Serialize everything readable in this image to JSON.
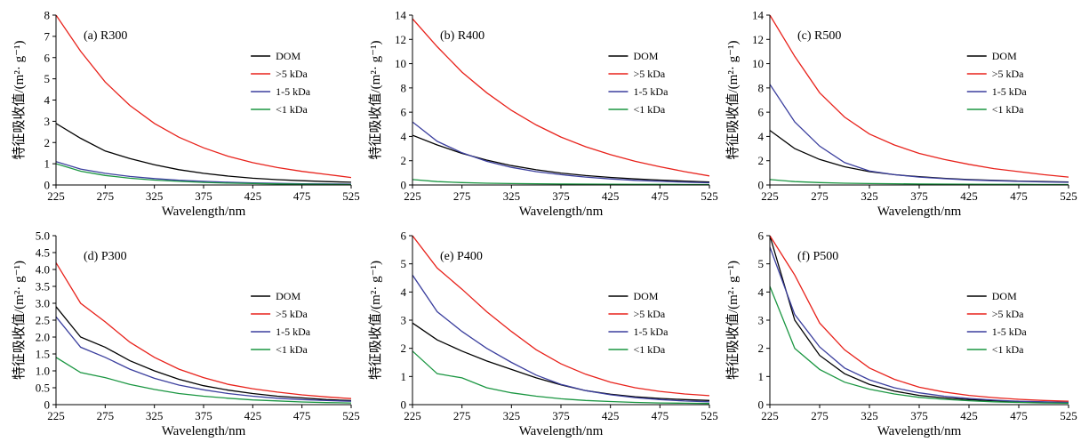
{
  "chart_data": [
    {
      "type": "line",
      "title": "(a) R300",
      "xlabel": "Wavelength/nm",
      "ylabel": "特征吸收值/(m²· g⁻¹)",
      "xlim": [
        225,
        525
      ],
      "ylim": [
        0,
        8
      ],
      "xticks": [
        "225",
        "275",
        "325",
        "375",
        "425",
        "475",
        "525"
      ],
      "yticks": [
        "0",
        "1",
        "2",
        "3",
        "4",
        "5",
        "6",
        "7",
        "8"
      ],
      "legend_position": "right",
      "x": [
        225,
        250,
        275,
        300,
        325,
        350,
        375,
        400,
        425,
        450,
        475,
        500,
        525
      ],
      "series": [
        {
          "name": "DOM",
          "color": "#000000",
          "values": [
            2.9,
            2.2,
            1.6,
            1.25,
            0.95,
            0.72,
            0.55,
            0.42,
            0.32,
            0.25,
            0.2,
            0.16,
            0.13
          ]
        },
        {
          "name": ">5 kDa",
          "color": "#e8221b",
          "values": [
            8.0,
            6.3,
            4.85,
            3.75,
            2.9,
            2.25,
            1.75,
            1.35,
            1.05,
            0.82,
            0.64,
            0.5,
            0.35
          ]
        },
        {
          "name": "1-5 kDa",
          "color": "#3b3f9e",
          "values": [
            1.1,
            0.75,
            0.55,
            0.4,
            0.3,
            0.22,
            0.17,
            0.13,
            0.1,
            0.08,
            0.06,
            0.05,
            0.04
          ]
        },
        {
          "name": "<1 kDa",
          "color": "#1a9641",
          "values": [
            1.0,
            0.65,
            0.45,
            0.32,
            0.23,
            0.17,
            0.12,
            0.09,
            0.07,
            0.05,
            0.04,
            0.03,
            0.02
          ]
        }
      ]
    },
    {
      "type": "line",
      "title": "(b) R400",
      "xlabel": "Wavelength/nm",
      "ylabel": "特征吸收值/(m²· g⁻¹)",
      "xlim": [
        225,
        525
      ],
      "ylim": [
        0,
        14
      ],
      "xticks": [
        "225",
        "275",
        "325",
        "375",
        "425",
        "475",
        "525"
      ],
      "yticks": [
        "0",
        "2",
        "4",
        "6",
        "8",
        "10",
        "12",
        "14"
      ],
      "legend_position": "right",
      "x": [
        225,
        250,
        275,
        300,
        325,
        350,
        375,
        400,
        425,
        450,
        475,
        500,
        525
      ],
      "series": [
        {
          "name": "DOM",
          "color": "#000000",
          "values": [
            4.1,
            3.3,
            2.6,
            2.05,
            1.6,
            1.25,
            0.98,
            0.78,
            0.62,
            0.5,
            0.4,
            0.32,
            0.25
          ]
        },
        {
          "name": ">5 kDa",
          "color": "#e8221b",
          "values": [
            13.7,
            11.4,
            9.3,
            7.6,
            6.15,
            4.95,
            3.95,
            3.15,
            2.5,
            1.95,
            1.5,
            1.1,
            0.75
          ]
        },
        {
          "name": "1-5 kDa",
          "color": "#3b3f9e",
          "values": [
            5.2,
            3.6,
            2.65,
            1.95,
            1.45,
            1.1,
            0.85,
            0.65,
            0.5,
            0.38,
            0.3,
            0.23,
            0.18
          ]
        },
        {
          "name": "<1 kDa",
          "color": "#1a9641",
          "values": [
            0.45,
            0.28,
            0.2,
            0.15,
            0.12,
            0.1,
            0.08,
            0.07,
            0.06,
            0.05,
            0.05,
            0.04,
            0.04
          ]
        }
      ]
    },
    {
      "type": "line",
      "title": "(c) R500",
      "xlabel": "Wavelength/nm",
      "ylabel": "特征吸收值/(m²· g⁻¹)",
      "xlim": [
        225,
        525
      ],
      "ylim": [
        0,
        14
      ],
      "xticks": [
        "225",
        "275",
        "325",
        "375",
        "425",
        "475",
        "525"
      ],
      "yticks": [
        "0",
        "2",
        "4",
        "6",
        "8",
        "10",
        "12",
        "14"
      ],
      "legend_position": "right",
      "x": [
        225,
        250,
        275,
        300,
        325,
        350,
        375,
        400,
        425,
        450,
        475,
        500,
        525
      ],
      "series": [
        {
          "name": "DOM",
          "color": "#000000",
          "values": [
            4.5,
            3.0,
            2.1,
            1.5,
            1.1,
            0.85,
            0.68,
            0.55,
            0.45,
            0.38,
            0.32,
            0.28,
            0.25
          ]
        },
        {
          "name": ">5 kDa",
          "color": "#e8221b",
          "values": [
            14.0,
            10.6,
            7.6,
            5.6,
            4.2,
            3.3,
            2.6,
            2.1,
            1.7,
            1.35,
            1.1,
            0.85,
            0.65
          ]
        },
        {
          "name": "1-5 kDa",
          "color": "#3b3f9e",
          "values": [
            8.3,
            5.2,
            3.2,
            1.85,
            1.15,
            0.85,
            0.65,
            0.52,
            0.42,
            0.35,
            0.3,
            0.25,
            0.22
          ]
        },
        {
          "name": "<1 kDa",
          "color": "#1a9641",
          "values": [
            0.45,
            0.28,
            0.2,
            0.15,
            0.12,
            0.1,
            0.08,
            0.07,
            0.06,
            0.05,
            0.05,
            0.04,
            0.04
          ]
        }
      ]
    },
    {
      "type": "line",
      "title": "(d) P300",
      "xlabel": "Wavelength/nm",
      "ylabel": "特征吸收值/(m²· g⁻¹)",
      "xlim": [
        225,
        525
      ],
      "ylim": [
        0,
        5.0
      ],
      "xticks": [
        "225",
        "275",
        "325",
        "375",
        "425",
        "475",
        "525"
      ],
      "yticks": [
        "0",
        "0.5",
        "1.0",
        "1.5",
        "2.0",
        "2.5",
        "3.0",
        "3.5",
        "4.0",
        "4.5",
        "5.0"
      ],
      "legend_position": "right",
      "x": [
        225,
        250,
        275,
        300,
        325,
        350,
        375,
        400,
        425,
        450,
        475,
        500,
        525
      ],
      "series": [
        {
          "name": "DOM",
          "color": "#000000",
          "values": [
            2.9,
            2.0,
            1.7,
            1.3,
            1.0,
            0.75,
            0.56,
            0.43,
            0.33,
            0.25,
            0.2,
            0.15,
            0.12
          ]
        },
        {
          "name": ">5 kDa",
          "color": "#e8221b",
          "values": [
            4.2,
            3.0,
            2.45,
            1.85,
            1.4,
            1.05,
            0.8,
            0.6,
            0.47,
            0.37,
            0.29,
            0.23,
            0.18
          ]
        },
        {
          "name": "1-5 kDa",
          "color": "#3b3f9e",
          "values": [
            2.6,
            1.7,
            1.4,
            1.05,
            0.78,
            0.58,
            0.44,
            0.33,
            0.25,
            0.19,
            0.15,
            0.12,
            0.1
          ]
        },
        {
          "name": "<1 kDa",
          "color": "#1a9641",
          "values": [
            1.4,
            0.95,
            0.8,
            0.6,
            0.45,
            0.33,
            0.25,
            0.19,
            0.14,
            0.11,
            0.08,
            0.06,
            0.05
          ]
        }
      ]
    },
    {
      "type": "line",
      "title": "(e) P400",
      "xlabel": "Wavelength/nm",
      "ylabel": "特征吸收值/(m²· g⁻¹)",
      "xlim": [
        225,
        525
      ],
      "ylim": [
        0,
        6
      ],
      "xticks": [
        "225",
        "275",
        "325",
        "375",
        "425",
        "475",
        "525"
      ],
      "yticks": [
        "0",
        "1",
        "2",
        "3",
        "4",
        "5",
        "6"
      ],
      "legend_position": "right",
      "x": [
        225,
        250,
        275,
        300,
        325,
        350,
        375,
        400,
        425,
        450,
        475,
        500,
        525
      ],
      "series": [
        {
          "name": "DOM",
          "color": "#000000",
          "values": [
            2.9,
            2.3,
            1.9,
            1.55,
            1.25,
            0.95,
            0.7,
            0.5,
            0.37,
            0.28,
            0.22,
            0.18,
            0.15
          ]
        },
        {
          "name": ">5 kDa",
          "color": "#e8221b",
          "values": [
            6.0,
            4.85,
            4.1,
            3.3,
            2.6,
            1.95,
            1.45,
            1.08,
            0.8,
            0.6,
            0.47,
            0.38,
            0.32
          ]
        },
        {
          "name": "1-5 kDa",
          "color": "#3b3f9e",
          "values": [
            4.6,
            3.3,
            2.6,
            2.0,
            1.5,
            1.05,
            0.72,
            0.5,
            0.35,
            0.25,
            0.18,
            0.13,
            0.1
          ]
        },
        {
          "name": "<1 kDa",
          "color": "#1a9641",
          "values": [
            1.9,
            1.1,
            0.95,
            0.6,
            0.42,
            0.3,
            0.21,
            0.15,
            0.11,
            0.08,
            0.06,
            0.05,
            0.04
          ]
        }
      ]
    },
    {
      "type": "line",
      "title": "(f) P500",
      "xlabel": "Wavelength/nm",
      "ylabel": "特征吸收值/(m²· g⁻¹)",
      "xlim": [
        225,
        525
      ],
      "ylim": [
        0,
        6
      ],
      "xticks": [
        "225",
        "275",
        "325",
        "375",
        "425",
        "475",
        "525"
      ],
      "yticks": [
        "0",
        "1",
        "2",
        "3",
        "4",
        "5",
        "6"
      ],
      "legend_position": "right",
      "x": [
        225,
        250,
        275,
        300,
        325,
        350,
        375,
        400,
        425,
        450,
        475,
        500,
        525
      ],
      "series": [
        {
          "name": "DOM",
          "color": "#000000",
          "values": [
            6.0,
            3.0,
            1.75,
            1.1,
            0.72,
            0.48,
            0.33,
            0.24,
            0.18,
            0.14,
            0.11,
            0.09,
            0.08
          ]
        },
        {
          "name": ">5 kDa",
          "color": "#e8221b",
          "values": [
            6.0,
            4.6,
            2.9,
            1.95,
            1.3,
            0.9,
            0.62,
            0.45,
            0.33,
            0.25,
            0.19,
            0.15,
            0.12
          ]
        },
        {
          "name": "1-5 kDa",
          "color": "#3b3f9e",
          "values": [
            5.6,
            3.2,
            2.05,
            1.3,
            0.88,
            0.6,
            0.42,
            0.3,
            0.22,
            0.16,
            0.12,
            0.1,
            0.08
          ]
        },
        {
          "name": "<1 kDa",
          "color": "#1a9641",
          "values": [
            4.2,
            2.0,
            1.25,
            0.8,
            0.55,
            0.38,
            0.26,
            0.19,
            0.14,
            0.1,
            0.08,
            0.06,
            0.05
          ]
        }
      ]
    }
  ]
}
